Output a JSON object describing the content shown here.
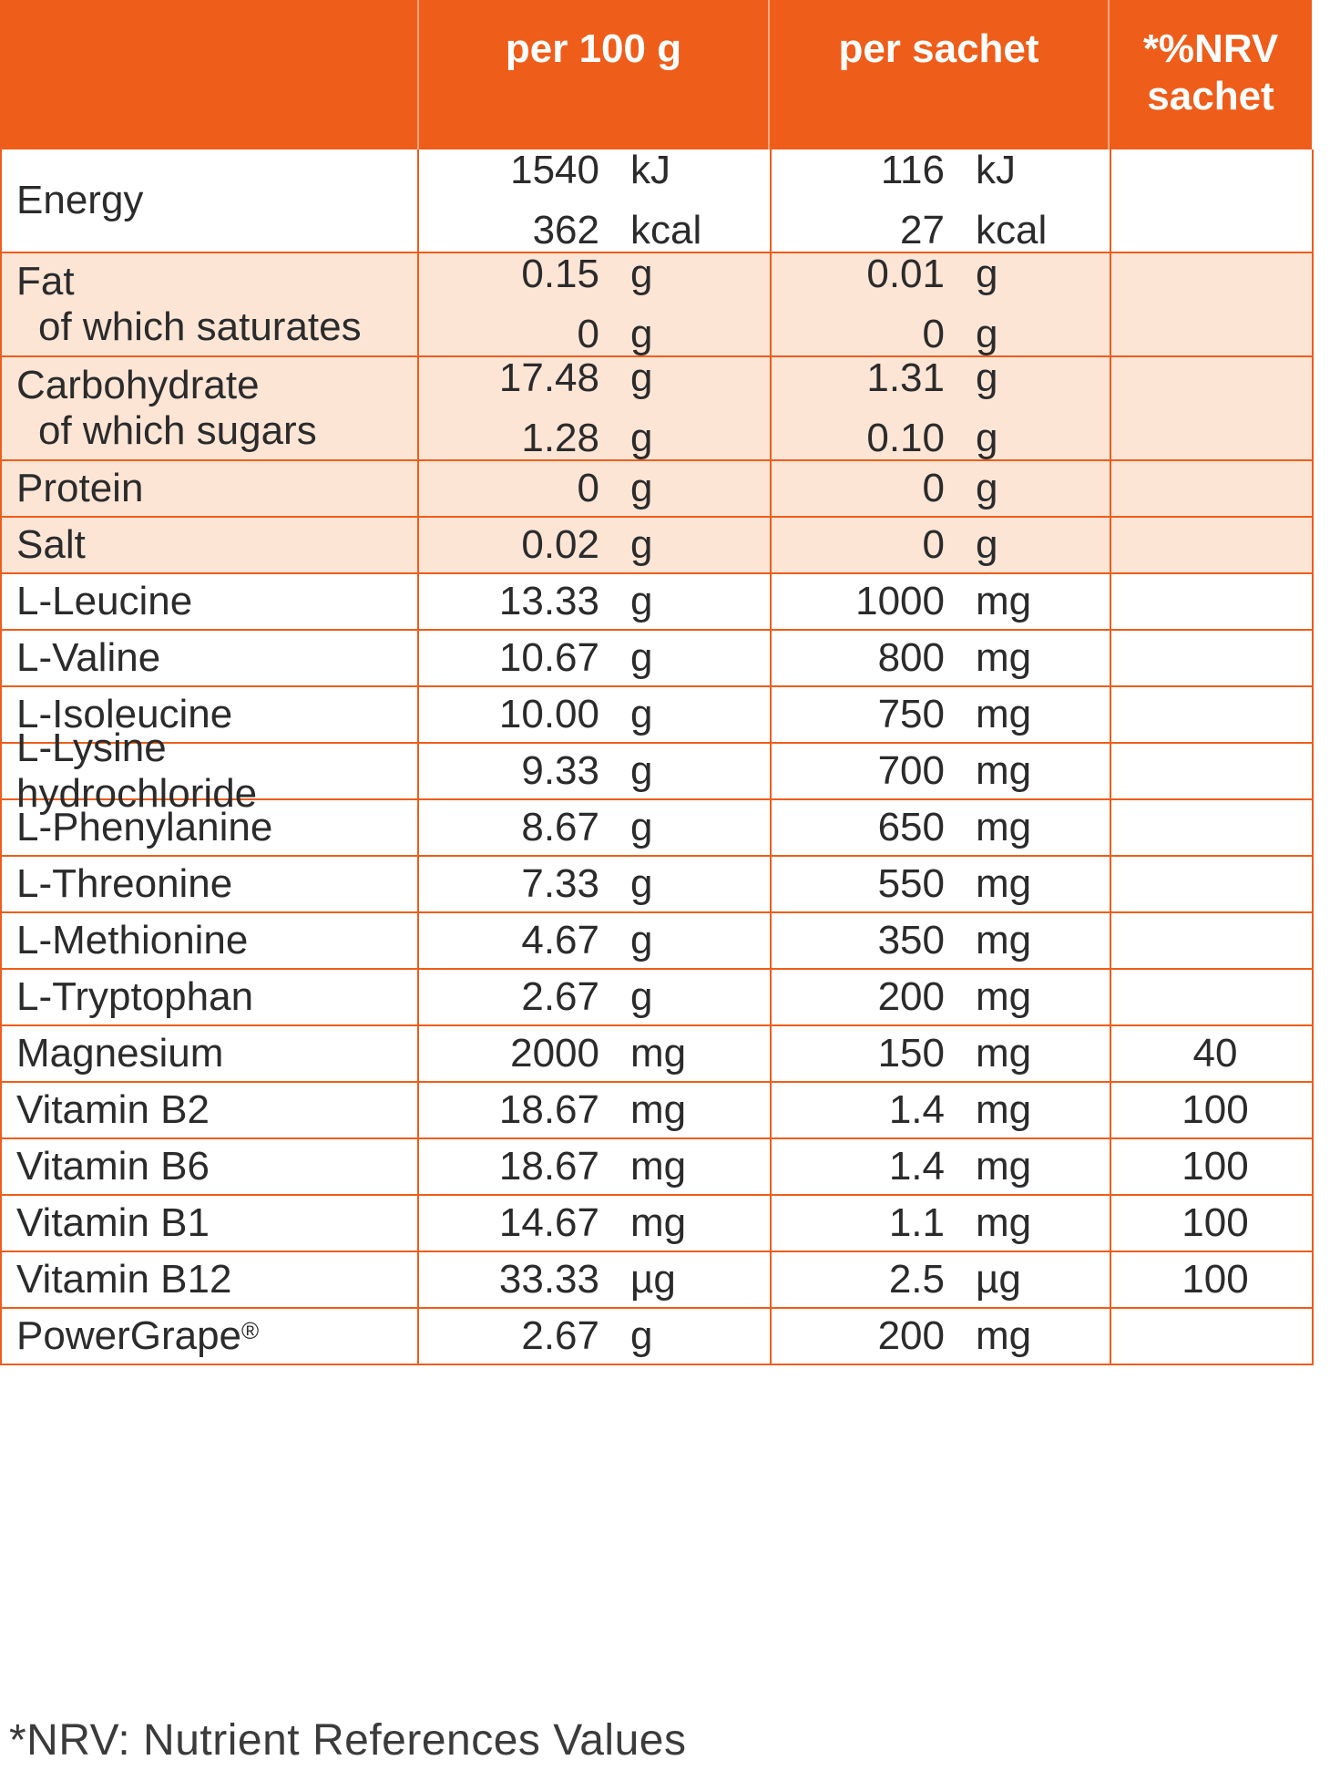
{
  "header": {
    "col_per100": "per 100 g",
    "col_sachet": "per sachet",
    "col_nrv_line1": "*%NRV",
    "col_nrv_line2": "sachet"
  },
  "rows": [
    {
      "name": "Energy",
      "sub": "",
      "p100": [
        [
          "1540",
          "kJ"
        ],
        [
          "362",
          "kcal"
        ]
      ],
      "sachet": [
        [
          "116",
          "kJ"
        ],
        [
          "27",
          "kcal"
        ]
      ],
      "nrv": "",
      "tinted": false
    },
    {
      "name": "Fat",
      "sub": "of which saturates",
      "p100": [
        [
          "0.15",
          "g"
        ],
        [
          "0",
          "g"
        ]
      ],
      "sachet": [
        [
          "0.01",
          "g"
        ],
        [
          "0",
          "g"
        ]
      ],
      "nrv": "",
      "tinted": true
    },
    {
      "name": "Carbohydrate",
      "sub": "of which sugars",
      "p100": [
        [
          "17.48",
          "g"
        ],
        [
          "1.28",
          "g"
        ]
      ],
      "sachet": [
        [
          "1.31",
          "g"
        ],
        [
          "0.10",
          "g"
        ]
      ],
      "nrv": "",
      "tinted": true
    },
    {
      "name": "Protein",
      "sub": "",
      "p100": [
        [
          "0",
          "g"
        ]
      ],
      "sachet": [
        [
          "0",
          "g"
        ]
      ],
      "nrv": "",
      "tinted": true
    },
    {
      "name": "Salt",
      "sub": "",
      "p100": [
        [
          "0.02",
          "g"
        ]
      ],
      "sachet": [
        [
          "0",
          "g"
        ]
      ],
      "nrv": "",
      "tinted": true
    },
    {
      "name": "L-Leucine",
      "sub": "",
      "p100": [
        [
          "13.33",
          "g"
        ]
      ],
      "sachet": [
        [
          "1000",
          "mg"
        ]
      ],
      "nrv": "",
      "tinted": false
    },
    {
      "name": "L-Valine",
      "sub": "",
      "p100": [
        [
          "10.67",
          "g"
        ]
      ],
      "sachet": [
        [
          "800",
          "mg"
        ]
      ],
      "nrv": "",
      "tinted": false
    },
    {
      "name": "L-Isoleucine",
      "sub": "",
      "p100": [
        [
          "10.00",
          "g"
        ]
      ],
      "sachet": [
        [
          "750",
          "mg"
        ]
      ],
      "nrv": "",
      "tinted": false
    },
    {
      "name": "L-Lysine hydrochloride",
      "sub": "",
      "p100": [
        [
          "9.33",
          "g"
        ]
      ],
      "sachet": [
        [
          "700",
          "mg"
        ]
      ],
      "nrv": "",
      "tinted": false
    },
    {
      "name": "L-Phenylanine",
      "sub": "",
      "p100": [
        [
          "8.67",
          "g"
        ]
      ],
      "sachet": [
        [
          "650",
          "mg"
        ]
      ],
      "nrv": "",
      "tinted": false
    },
    {
      "name": "L-Threonine",
      "sub": "",
      "p100": [
        [
          "7.33",
          "g"
        ]
      ],
      "sachet": [
        [
          "550",
          "mg"
        ]
      ],
      "nrv": "",
      "tinted": false
    },
    {
      "name": "L-Methionine",
      "sub": "",
      "p100": [
        [
          "4.67",
          "g"
        ]
      ],
      "sachet": [
        [
          "350",
          "mg"
        ]
      ],
      "nrv": "",
      "tinted": false
    },
    {
      "name": "L-Tryptophan",
      "sub": "",
      "p100": [
        [
          "2.67",
          "g"
        ]
      ],
      "sachet": [
        [
          "200",
          "mg"
        ]
      ],
      "nrv": "",
      "tinted": false
    },
    {
      "name": "Magnesium",
      "sub": "",
      "p100": [
        [
          "2000",
          "mg"
        ]
      ],
      "sachet": [
        [
          "150",
          "mg"
        ]
      ],
      "nrv": "40",
      "tinted": false
    },
    {
      "name": "Vitamin B2",
      "sub": "",
      "p100": [
        [
          "18.67",
          "mg"
        ]
      ],
      "sachet": [
        [
          "1.4",
          "mg"
        ]
      ],
      "nrv": "100",
      "tinted": false
    },
    {
      "name": "Vitamin B6",
      "sub": "",
      "p100": [
        [
          "18.67",
          "mg"
        ]
      ],
      "sachet": [
        [
          "1.4",
          "mg"
        ]
      ],
      "nrv": "100",
      "tinted": false
    },
    {
      "name": "Vitamin B1",
      "sub": "",
      "p100": [
        [
          "14.67",
          "mg"
        ]
      ],
      "sachet": [
        [
          "1.1",
          "mg"
        ]
      ],
      "nrv": "100",
      "tinted": false
    },
    {
      "name": "Vitamin B12",
      "sub": "",
      "p100": [
        [
          "33.33",
          "µg"
        ]
      ],
      "sachet": [
        [
          "2.5",
          "µg"
        ]
      ],
      "nrv": "100",
      "tinted": false
    },
    {
      "name": "PowerGrape",
      "sub": "",
      "reg": "®",
      "p100": [
        [
          "2.67",
          "g"
        ]
      ],
      "sachet": [
        [
          "200",
          "mg"
        ]
      ],
      "nrv": "",
      "tinted": false
    }
  ],
  "footnote": "*NRV: Nutrient References Values",
  "colors": {
    "accent": "#ee5d1a",
    "tint": "#fde5d6"
  }
}
